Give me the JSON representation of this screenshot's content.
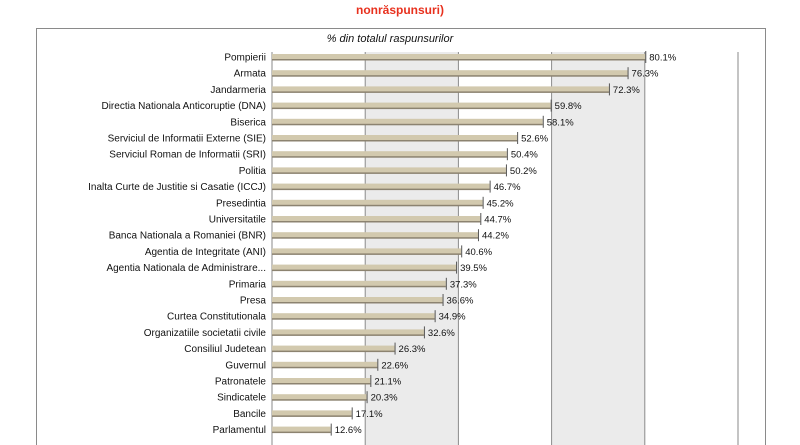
{
  "header": {
    "title_top": "",
    "title_red": "nonrăspunsuri)"
  },
  "chart_data": {
    "type": "bar",
    "orientation": "horizontal",
    "subtitle": "% din totalul raspunsurilor",
    "categories": [
      "Pompierii",
      "Armata",
      "Jandarmeria",
      "Directia Nationala Anticoruptie (DNA)",
      "Biserica",
      "Serviciul de Informatii Externe (SIE)",
      "Serviciul Roman de Informatii (SRI)",
      "Politia",
      "Inalta Curte de Justitie si Casatie (ICCJ)",
      "Presedintia",
      "Universitatile",
      "Banca Nationala a Romaniei (BNR)",
      "Agentia de Integritate (ANI)",
      "Agentia Nationala de Administrare...",
      "Primaria",
      "Presa",
      "Curtea Constitutionala",
      "Organizatiile societatii civile",
      "Consiliul Judetean",
      "Guvernul",
      "Patronatele",
      "Sindicatele",
      "Bancile",
      "Parlamentul"
    ],
    "values": [
      80.1,
      76.3,
      72.3,
      59.8,
      58.1,
      52.6,
      50.4,
      50.2,
      46.7,
      45.2,
      44.7,
      44.2,
      40.6,
      39.5,
      37.3,
      36.6,
      34.9,
      32.6,
      26.3,
      22.6,
      21.1,
      20.3,
      17.1,
      12.6
    ],
    "value_labels": [
      "80.1%",
      "76.3%",
      "72.3%",
      "59.8%",
      "58.1%",
      "52.6%",
      "50.4%",
      "50.2%",
      "46.7%",
      "45.2%",
      "44.7%",
      "44.2%",
      "40.6%",
      "39.5%",
      "37.3%",
      "36.6%",
      "34.9%",
      "32.6%",
      "26.3%",
      "22.6%",
      "21.1%",
      "20.3%",
      "17.1%",
      "12.6%"
    ],
    "xlim": [
      0,
      100
    ],
    "grid": true,
    "colors": {
      "bar": "#d2c9ae",
      "bar_shadow": "#8c8370",
      "plot_background": "#ebebeb",
      "grid": "#8a8a8a",
      "title_red": "#e8311e"
    }
  }
}
